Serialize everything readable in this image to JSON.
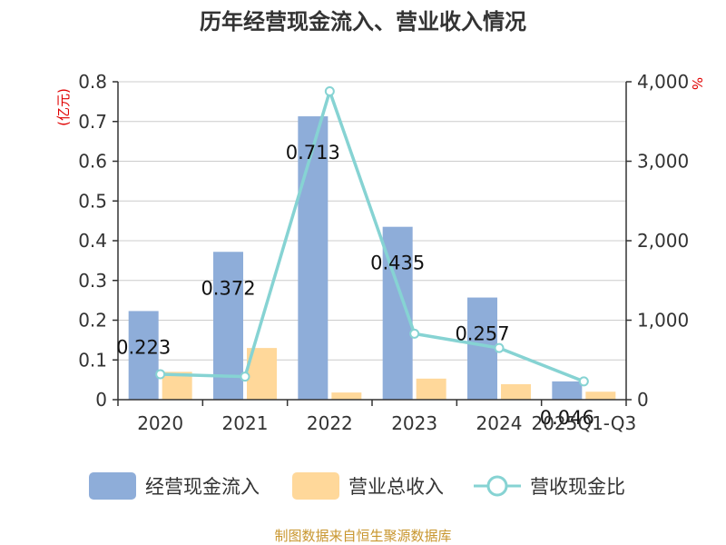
{
  "chart_data": {
    "type": "bar",
    "title": "历年经营现金流入、营业收入情况",
    "categories": [
      "2020",
      "2021",
      "2022",
      "2023",
      "2024",
      "2025Q1-Q3"
    ],
    "left_axis": {
      "unit": "(亿元)",
      "min": 0,
      "max": 0.8,
      "ticks": [
        "0",
        "0.1",
        "0.2",
        "0.3",
        "0.4",
        "0.5",
        "0.6",
        "0.7",
        "0.8"
      ]
    },
    "right_axis": {
      "unit": "%",
      "min": 0,
      "max": 4000,
      "ticks": [
        "0",
        "1,000",
        "2,000",
        "3,000",
        "4,000"
      ]
    },
    "series": [
      {
        "name": "经营现金流入",
        "type": "bar",
        "axis": "left",
        "color": "#8eadd9",
        "values": [
          0.223,
          0.372,
          0.713,
          0.435,
          0.257,
          0.046
        ],
        "labels": [
          "0.223",
          "0.372",
          "0.713",
          "0.435",
          "0.257",
          "0.046"
        ]
      },
      {
        "name": "营业总收入",
        "type": "bar",
        "axis": "left",
        "color": "#ffd89a",
        "values": [
          0.07,
          0.13,
          0.018,
          0.053,
          0.039,
          0.02
        ]
      },
      {
        "name": "营收现金比",
        "type": "line",
        "axis": "right",
        "color": "#86d3d3",
        "values": [
          320,
          290,
          3880,
          830,
          650,
          230
        ]
      }
    ],
    "grid": true,
    "legend_position": "bottom"
  },
  "source": "制图数据来自恒生聚源数据库"
}
